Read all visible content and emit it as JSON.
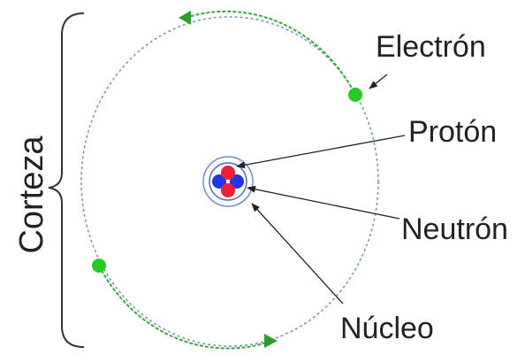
{
  "labels": {
    "cortex": "Corteza",
    "electron": "Electrón",
    "proton": "Protón",
    "neutron": "Neutrón",
    "nucleus": "Núcleo"
  }
}
